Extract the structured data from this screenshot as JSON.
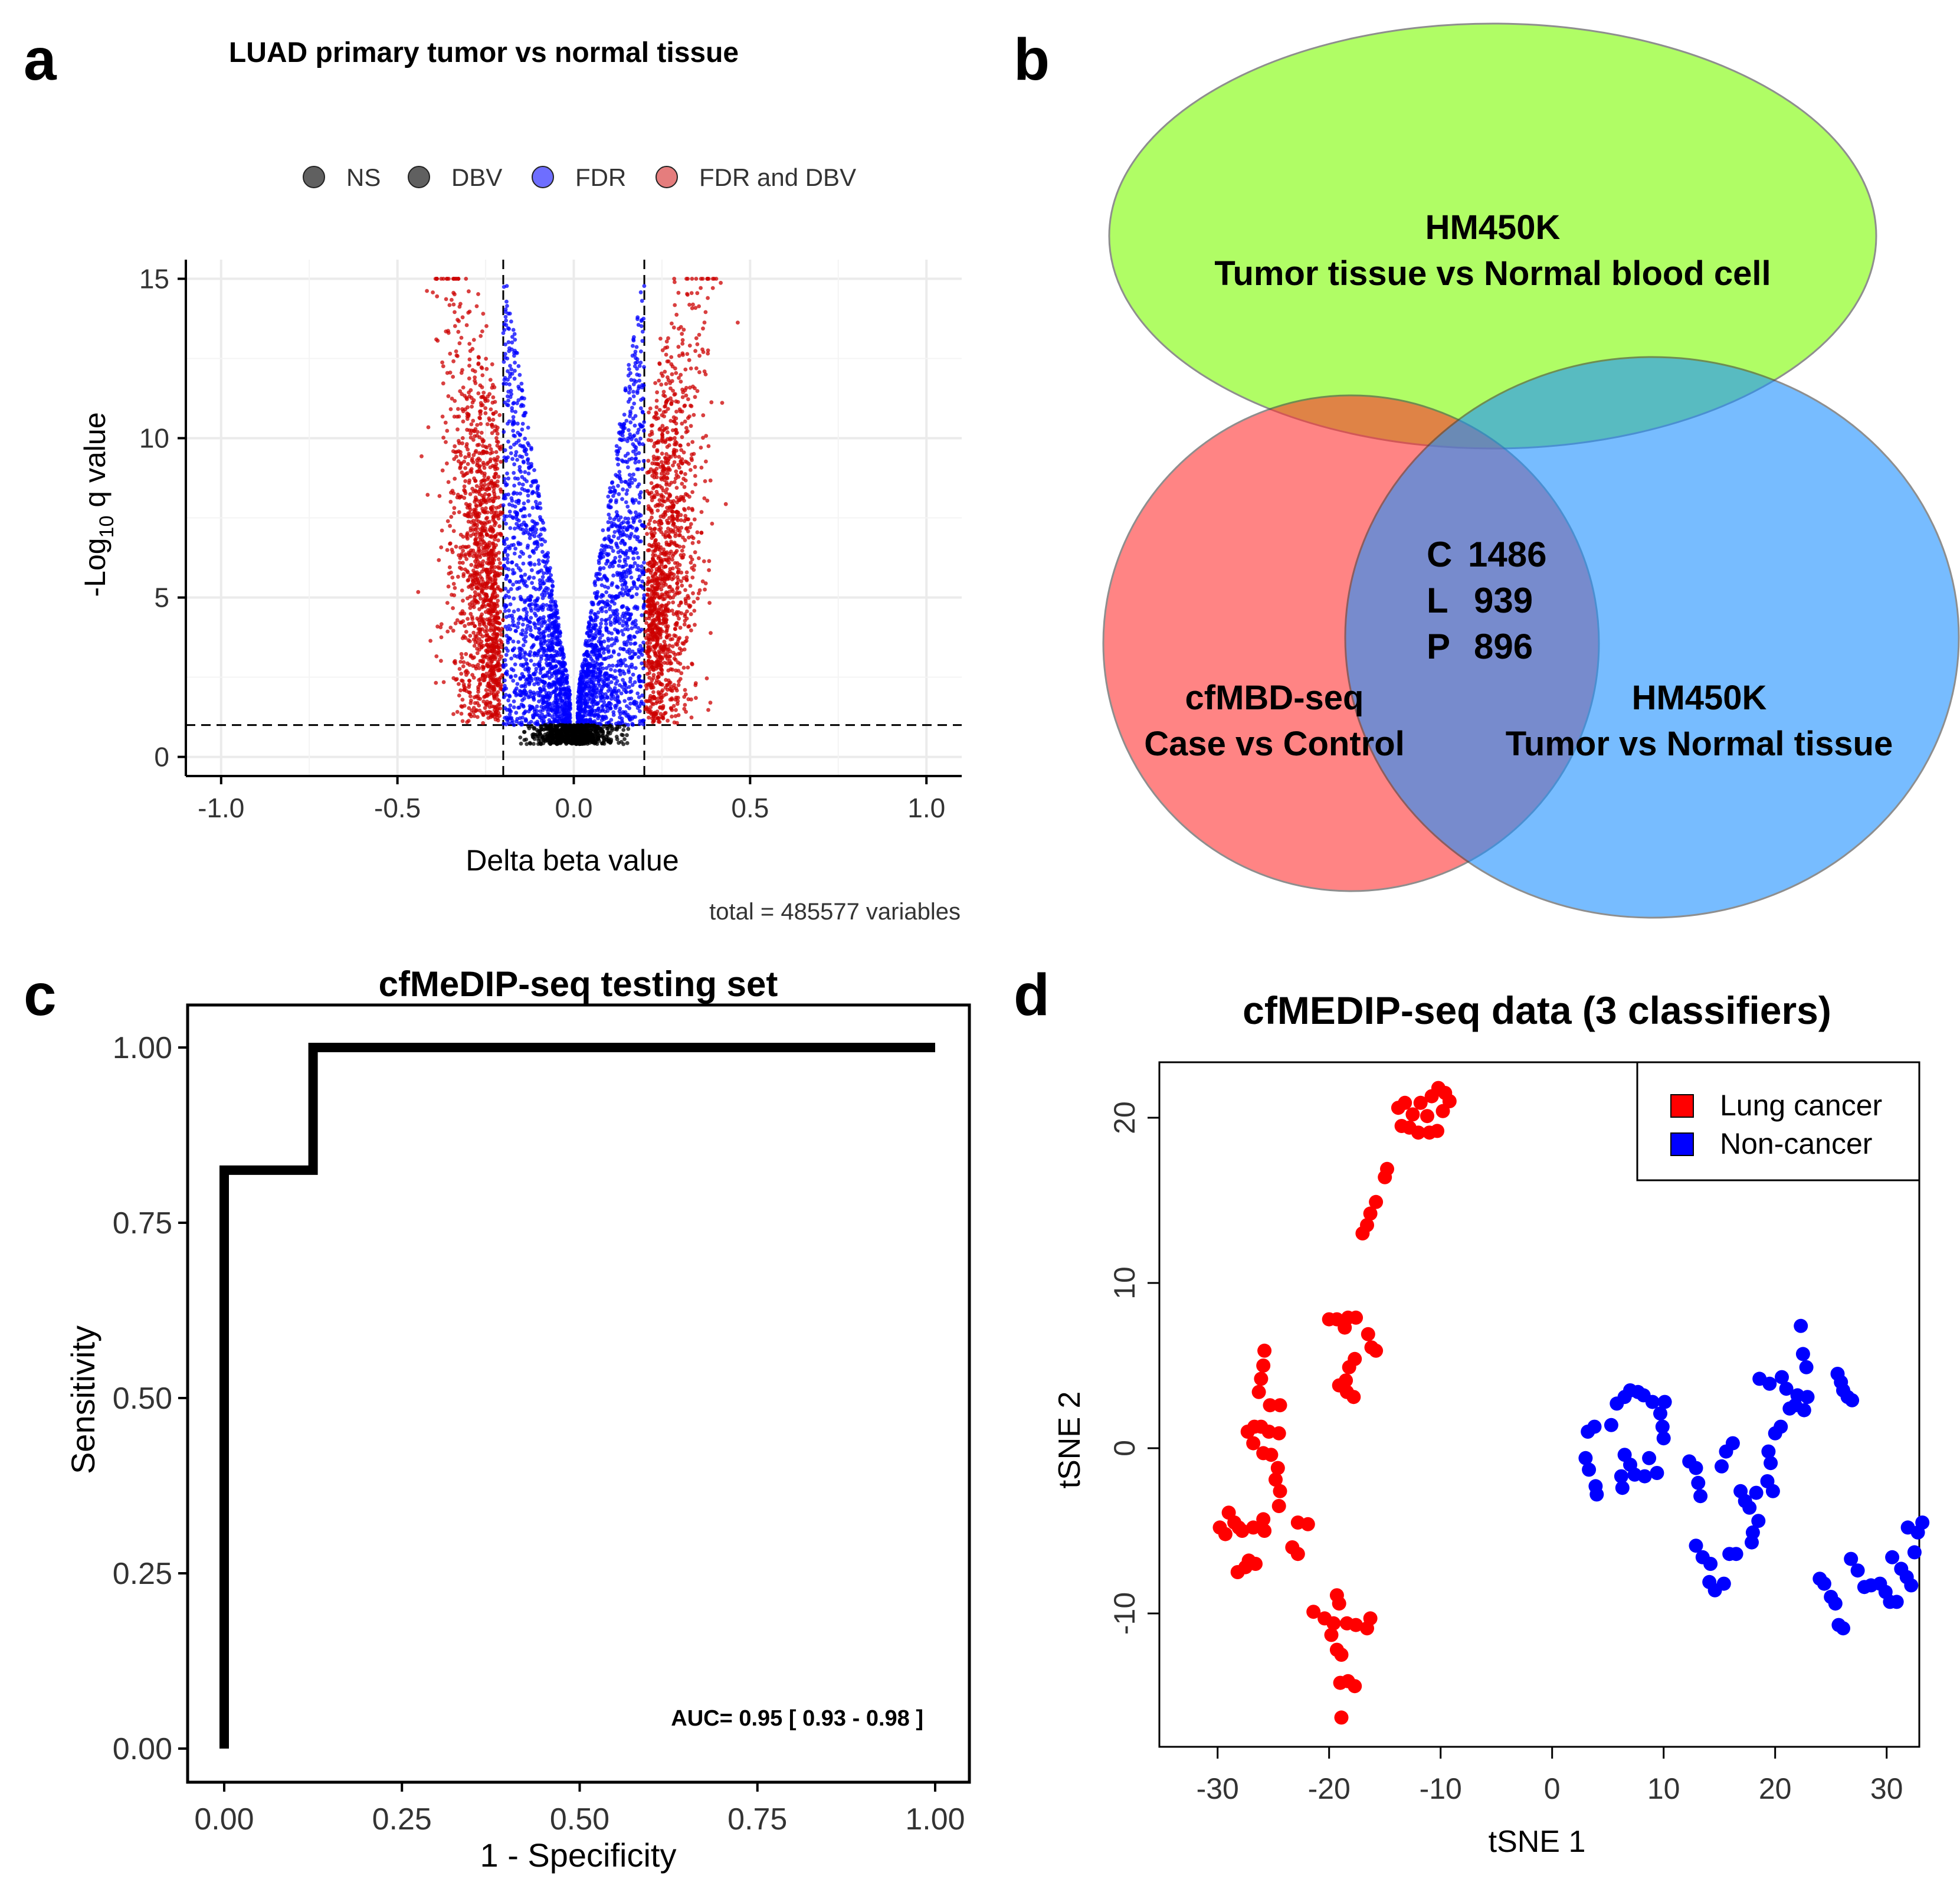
{
  "panels": {
    "a_label": "a",
    "b_label": "b",
    "c_label": "c",
    "d_label": "d"
  },
  "chart_data": [
    {
      "type": "scatter",
      "title": "LUAD primary tumor vs normal tissue",
      "xlabel": "Delta beta value",
      "ylabel_prefix": "-Log",
      "ylabel_sub": "10",
      "ylabel_suffix": " q value",
      "caption": "total = 485577 variables",
      "xlim": [
        -1.1,
        1.1
      ],
      "ylim": [
        -0.6,
        15.6
      ],
      "xticks": [
        -1.0,
        -0.5,
        0.0,
        0.5,
        1.0
      ],
      "xtick_labels": [
        "-1.0",
        "-0.5",
        "0.0",
        "0.5",
        "1.0"
      ],
      "yticks": [
        0,
        5,
        10,
        15
      ],
      "ytick_labels": [
        "0",
        "5",
        "10",
        "15"
      ],
      "cutoffs": {
        "delta_beta": [
          -0.2,
          0.2
        ],
        "log10_q": 1.0
      },
      "legend": [
        {
          "name": "NS",
          "color": "#444444"
        },
        {
          "name": "DBV",
          "color": "#444444"
        },
        {
          "name": "FDR",
          "color": "#5555ff"
        },
        {
          "name": "FDR and DBV",
          "color": "#e06666"
        }
      ],
      "colors": {
        "ns": "#000000",
        "fdr": "#0000ff",
        "both": "#cc0000"
      }
    },
    {
      "type": "venn",
      "sets": [
        {
          "name_line1": "HM450K",
          "name_line2": "Tumor tissue vs Normal blood cell",
          "color": "#7cfc00"
        },
        {
          "name_line1": "cfMBD-seq",
          "name_line2": "Case vs Control",
          "color": "#ff3333"
        },
        {
          "name_line1": "HM450K",
          "name_line2": "Tumor vs Normal tissue",
          "color": "#1e90ff"
        }
      ],
      "intersection": [
        {
          "label": "C",
          "value": "1486"
        },
        {
          "label": "L",
          "value": "939"
        },
        {
          "label": "P",
          "value": "896"
        }
      ]
    },
    {
      "type": "line",
      "title": "cfMeDIP-seq testing set",
      "xlabel": "1 - Specificity",
      "ylabel": "Sensitivity",
      "x": [
        0.0,
        0.0,
        0.125,
        0.125,
        1.0
      ],
      "y": [
        0.0,
        0.825,
        0.825,
        1.0,
        1.0
      ],
      "xlim": [
        0.0,
        1.0
      ],
      "ylim": [
        0.0,
        1.0
      ],
      "xticks": [
        0.0,
        0.25,
        0.5,
        0.75,
        1.0
      ],
      "xtick_labels": [
        "0.00",
        "0.25",
        "0.50",
        "0.75",
        "1.00"
      ],
      "yticks": [
        0.0,
        0.25,
        0.5,
        0.75,
        1.0
      ],
      "ytick_labels": [
        "0.00",
        "0.25",
        "0.50",
        "0.75",
        "1.00"
      ],
      "annotation": "AUC= 0.95  [ 0.93 - 0.98 ]"
    },
    {
      "type": "scatter",
      "title": "cfMEDIP-seq data (3 classifiers)",
      "xlabel": "tSNE 1",
      "ylabel": "tSNE 2",
      "xlim": [
        -33,
        35
      ],
      "ylim": [
        -18,
        23
      ],
      "xticks": [
        -30,
        -20,
        -10,
        0,
        10,
        20,
        30
      ],
      "xtick_labels": [
        "-30",
        "-20",
        "-10",
        "0",
        "10",
        "20",
        "30"
      ],
      "yticks": [
        -10,
        0,
        10,
        20
      ],
      "ytick_labels": [
        "-10",
        "0",
        "10",
        "20"
      ],
      "legend_position": "top-right",
      "series": [
        {
          "name": "Lung cancer",
          "color": "#ff0000",
          "points": [
            [
              -13.8,
              20.6
            ],
            [
              -13.2,
              20.9
            ],
            [
              -12.5,
              20.2
            ],
            [
              -11.8,
              20.9
            ],
            [
              -10.8,
              21.3
            ],
            [
              -10.2,
              21.8
            ],
            [
              -9.6,
              21.5
            ],
            [
              -9.2,
              21.0
            ],
            [
              -9.8,
              20.4
            ],
            [
              -11.2,
              20.1
            ],
            [
              -12.8,
              19.4
            ],
            [
              -12.0,
              19.1
            ],
            [
              -11.0,
              19.1
            ],
            [
              -10.3,
              19.2
            ],
            [
              -13.5,
              19.5
            ],
            [
              -14.8,
              16.9
            ],
            [
              -15.0,
              16.4
            ],
            [
              -15.8,
              14.9
            ],
            [
              -16.3,
              14.2
            ],
            [
              -16.6,
              13.5
            ],
            [
              -17.0,
              13.0
            ],
            [
              -20.0,
              7.8
            ],
            [
              -19.3,
              7.8
            ],
            [
              -18.3,
              7.9
            ],
            [
              -17.6,
              7.9
            ],
            [
              -18.6,
              7.3
            ],
            [
              -16.5,
              6.9
            ],
            [
              -16.2,
              6.1
            ],
            [
              -15.8,
              5.9
            ],
            [
              -17.7,
              5.4
            ],
            [
              -18.2,
              4.9
            ],
            [
              -18.5,
              4.1
            ],
            [
              -19.1,
              3.8
            ],
            [
              -18.4,
              3.4
            ],
            [
              -17.8,
              3.1
            ],
            [
              -25.8,
              5.9
            ],
            [
              -25.9,
              5.0
            ],
            [
              -26.1,
              4.2
            ],
            [
              -26.3,
              3.4
            ],
            [
              -25.3,
              2.6
            ],
            [
              -24.4,
              2.6
            ],
            [
              -26.7,
              1.3
            ],
            [
              -27.3,
              1.0
            ],
            [
              -26.1,
              1.3
            ],
            [
              -25.4,
              1.0
            ],
            [
              -24.5,
              0.9
            ],
            [
              -26.8,
              0.3
            ],
            [
              -25.9,
              -0.3
            ],
            [
              -25.2,
              -0.4
            ],
            [
              -24.6,
              -1.2
            ],
            [
              -24.8,
              -1.9
            ],
            [
              -24.4,
              -2.6
            ],
            [
              -24.5,
              -3.5
            ],
            [
              -29.0,
              -3.9
            ],
            [
              -28.5,
              -4.5
            ],
            [
              -28.1,
              -4.8
            ],
            [
              -29.8,
              -4.8
            ],
            [
              -29.3,
              -5.2
            ],
            [
              -27.8,
              -5.0
            ],
            [
              -26.8,
              -4.8
            ],
            [
              -25.8,
              -5.0
            ],
            [
              -25.9,
              -4.3
            ],
            [
              -22.8,
              -4.5
            ],
            [
              -21.9,
              -4.6
            ],
            [
              -28.2,
              -7.5
            ],
            [
              -27.5,
              -7.2
            ],
            [
              -27.2,
              -6.8
            ],
            [
              -26.6,
              -7.0
            ],
            [
              -23.3,
              -6.0
            ],
            [
              -22.8,
              -6.4
            ],
            [
              -19.3,
              -8.9
            ],
            [
              -19.1,
              -9.4
            ],
            [
              -21.4,
              -9.9
            ],
            [
              -20.4,
              -10.3
            ],
            [
              -19.6,
              -10.6
            ],
            [
              -18.4,
              -10.6
            ],
            [
              -17.6,
              -10.7
            ],
            [
              -16.3,
              -10.3
            ],
            [
              -16.6,
              -10.9
            ],
            [
              -19.8,
              -11.3
            ],
            [
              -19.3,
              -12.2
            ],
            [
              -18.9,
              -12.5
            ],
            [
              -19.0,
              -14.2
            ],
            [
              -18.3,
              -14.1
            ],
            [
              -17.7,
              -14.4
            ],
            [
              -18.9,
              -16.3
            ]
          ]
        },
        {
          "name": "Non-cancer",
          "color": "#0000ff",
          "points": [
            [
              3.2,
              1.0
            ],
            [
              3.8,
              1.3
            ],
            [
              5.3,
              1.4
            ],
            [
              5.8,
              2.7
            ],
            [
              6.5,
              3.1
            ],
            [
              7.0,
              3.5
            ],
            [
              7.7,
              3.4
            ],
            [
              8.2,
              3.2
            ],
            [
              9.0,
              2.8
            ],
            [
              9.7,
              2.1
            ],
            [
              10.1,
              2.8
            ],
            [
              9.9,
              1.3
            ],
            [
              10.0,
              0.6
            ],
            [
              8.7,
              -0.6
            ],
            [
              9.4,
              -1.5
            ],
            [
              8.3,
              -1.7
            ],
            [
              7.4,
              -1.6
            ],
            [
              7.0,
              -1.0
            ],
            [
              6.5,
              -0.4
            ],
            [
              6.2,
              -1.7
            ],
            [
              6.3,
              -2.4
            ],
            [
              3.0,
              -0.6
            ],
            [
              3.3,
              -1.3
            ],
            [
              3.9,
              -2.3
            ],
            [
              4.0,
              -2.8
            ],
            [
              12.3,
              -0.8
            ],
            [
              12.9,
              -1.2
            ],
            [
              13.1,
              -2.1
            ],
            [
              13.3,
              -2.9
            ],
            [
              15.2,
              -1.1
            ],
            [
              15.6,
              -0.2
            ],
            [
              16.2,
              0.3
            ],
            [
              16.9,
              -2.6
            ],
            [
              17.3,
              -3.2
            ],
            [
              17.7,
              -3.6
            ],
            [
              18.3,
              -2.7
            ],
            [
              18.0,
              -5.1
            ],
            [
              17.9,
              -5.7
            ],
            [
              18.5,
              -4.4
            ],
            [
              19.3,
              -2.0
            ],
            [
              19.6,
              -0.9
            ],
            [
              19.4,
              -0.2
            ],
            [
              20.0,
              0.9
            ],
            [
              20.5,
              1.3
            ],
            [
              19.8,
              -2.6
            ],
            [
              18.6,
              4.2
            ],
            [
              19.5,
              3.9
            ],
            [
              20.6,
              4.3
            ],
            [
              21.0,
              3.6
            ],
            [
              21.3,
              2.4
            ],
            [
              21.8,
              2.6
            ],
            [
              22.0,
              3.2
            ],
            [
              22.6,
              2.3
            ],
            [
              22.9,
              3.1
            ],
            [
              22.3,
              7.4
            ],
            [
              22.5,
              5.7
            ],
            [
              22.8,
              4.9
            ],
            [
              25.6,
              4.5
            ],
            [
              25.9,
              4.0
            ],
            [
              26.1,
              3.5
            ],
            [
              26.5,
              3.1
            ],
            [
              26.9,
              2.9
            ],
            [
              12.9,
              -5.9
            ],
            [
              13.5,
              -6.6
            ],
            [
              14.2,
              -7.0
            ],
            [
              14.1,
              -8.1
            ],
            [
              14.6,
              -8.6
            ],
            [
              15.4,
              -8.2
            ],
            [
              15.9,
              -6.4
            ],
            [
              16.5,
              -6.4
            ],
            [
              24.0,
              -7.9
            ],
            [
              24.4,
              -8.2
            ],
            [
              25.0,
              -9.0
            ],
            [
              25.4,
              -9.4
            ],
            [
              25.7,
              -10.7
            ],
            [
              26.1,
              -10.9
            ],
            [
              26.8,
              -6.7
            ],
            [
              27.4,
              -7.4
            ],
            [
              28.0,
              -8.4
            ],
            [
              28.6,
              -8.3
            ],
            [
              29.4,
              -8.2
            ],
            [
              29.9,
              -8.7
            ],
            [
              30.3,
              -9.3
            ],
            [
              30.9,
              -9.3
            ],
            [
              30.5,
              -6.6
            ],
            [
              31.3,
              -7.3
            ],
            [
              31.8,
              -7.8
            ],
            [
              32.2,
              -8.3
            ],
            [
              32.5,
              -6.3
            ],
            [
              32.8,
              -5.1
            ],
            [
              33.2,
              -4.5
            ],
            [
              31.9,
              -4.8
            ]
          ]
        }
      ]
    }
  ]
}
